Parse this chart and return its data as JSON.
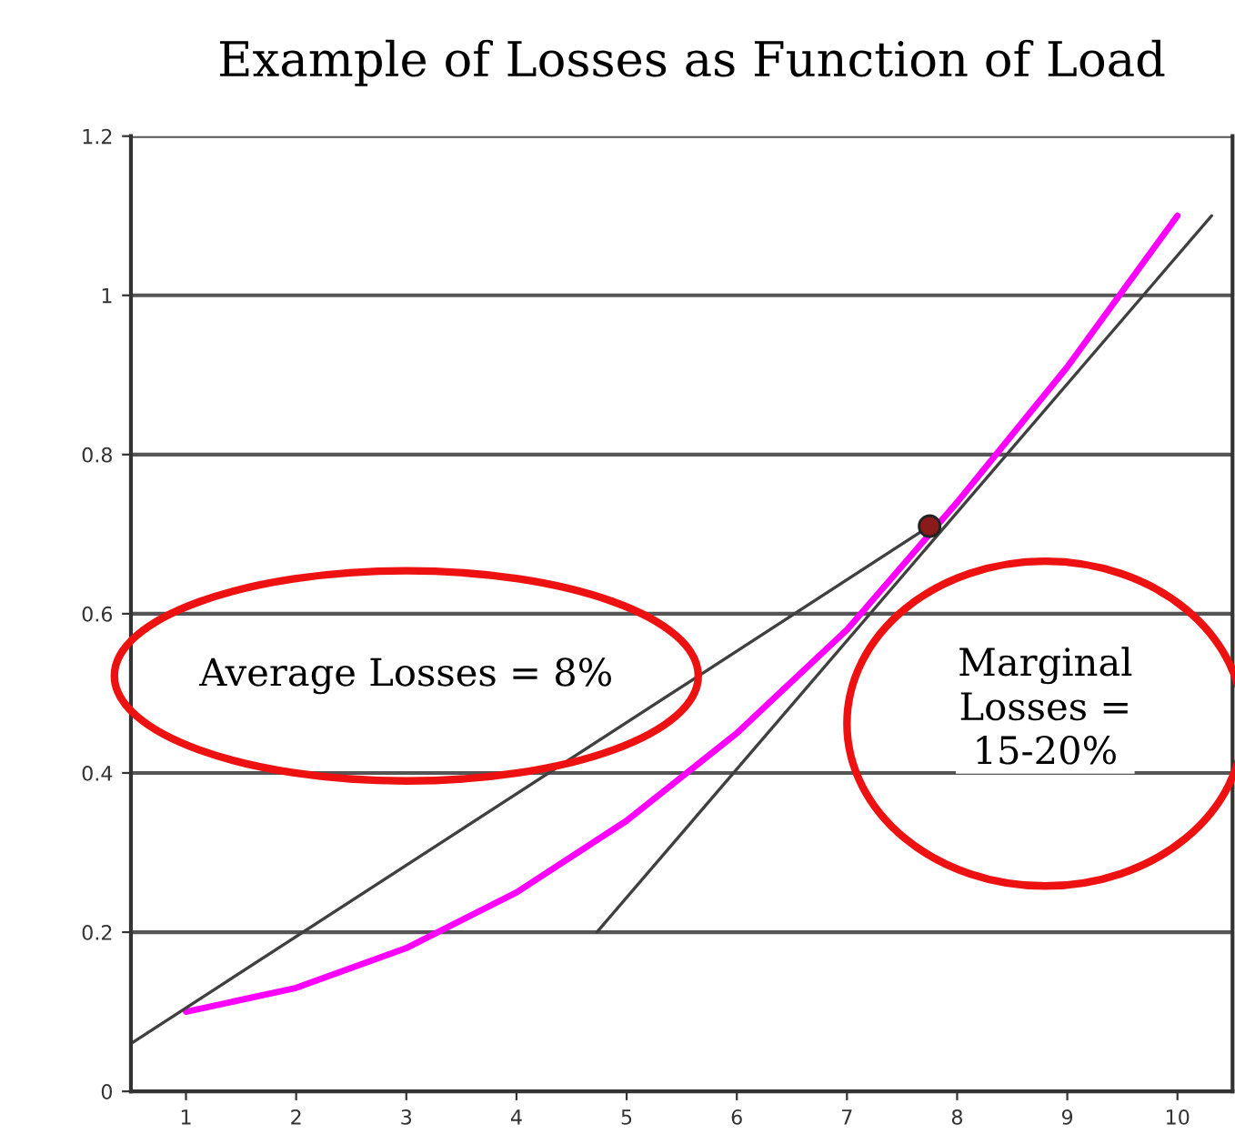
{
  "chart_data": {
    "type": "line",
    "title": "Example of Losses as Function of Load",
    "x": [
      1,
      2,
      3,
      4,
      5,
      6,
      7,
      8,
      9,
      10
    ],
    "series": [
      {
        "color": "#ff00ff",
        "values": [
          0.1,
          0.13,
          0.18,
          0.25,
          0.34,
          0.45,
          0.58,
          0.74,
          0.91,
          1.1
        ]
      },
      {
        "type": "line",
        "color": "#404040",
        "x": [
          0.5,
          7.75
        ],
        "values": [
          0.06,
          0.71
        ]
      },
      {
        "type": "line",
        "color": "#404040",
        "x": [
          4.73,
          10.31
        ],
        "values": [
          0.2,
          1.1
        ]
      },
      {
        "type": "scatter",
        "color": "#8b1a1a",
        "x": [
          7.75
        ],
        "values": [
          0.71
        ]
      }
    ],
    "annotations": [
      "Average Losses = 8%",
      "Marginal\nLosses =\n15-20%"
    ],
    "xlim": [
      0.5,
      10.5
    ],
    "xticks": [
      1,
      2,
      3,
      4,
      5,
      6,
      7,
      8,
      9,
      10
    ],
    "ylim": [
      0,
      1.2
    ],
    "yticks": [
      0,
      0.2,
      0.4,
      0.6,
      0.8,
      1,
      1.2
    ],
    "grid": "y",
    "legend": false
  }
}
